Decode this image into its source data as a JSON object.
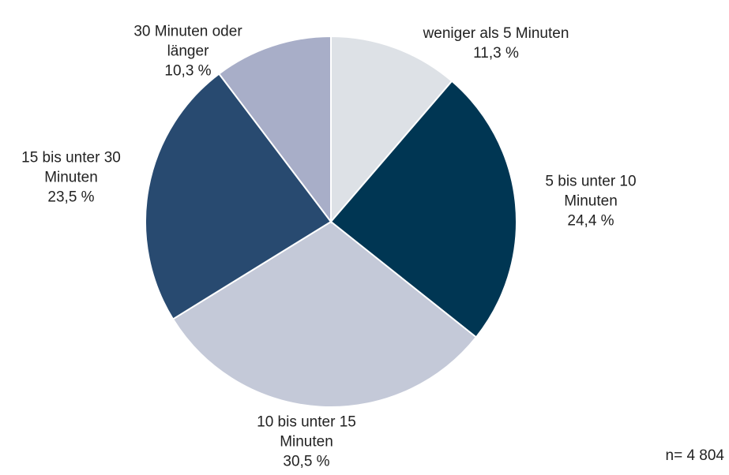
{
  "chart_data": {
    "type": "pie",
    "categories": [
      "weniger als 5 Minuten",
      "5 bis unter 10 Minuten",
      "10 bis unter 15 Minuten",
      "15 bis unter 30 Minuten",
      "30 Minuten oder länger"
    ],
    "values": [
      11.3,
      24.4,
      30.5,
      23.5,
      10.3
    ],
    "value_labels": [
      "11,3 %",
      "24,4 %",
      "30,5 %",
      "23,5 %",
      "10,3 %"
    ],
    "colors": [
      "#dde1e6",
      "#003653",
      "#c4c9d8",
      "#284a70",
      "#a8aec8"
    ],
    "note": "n= 4 804"
  }
}
